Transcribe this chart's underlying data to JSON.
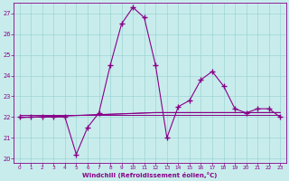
{
  "xlabel": "Windchill (Refroidissement éolien,°C)",
  "x": [
    0,
    1,
    2,
    3,
    4,
    5,
    6,
    7,
    8,
    9,
    10,
    11,
    12,
    13,
    14,
    15,
    16,
    17,
    18,
    19,
    20,
    21,
    22,
    23
  ],
  "y_main": [
    22,
    22,
    22,
    22,
    22,
    20.2,
    21.5,
    22.2,
    24.5,
    26.5,
    27.3,
    26.8,
    24.5,
    21.0,
    22.5,
    22.8,
    23.8,
    24.2,
    23.5,
    22.4,
    22.2,
    22.4,
    22.4,
    22
  ],
  "y_reg1": [
    21.98,
    22.0,
    22.02,
    22.04,
    22.06,
    22.08,
    22.1,
    22.12,
    22.14,
    22.16,
    22.18,
    22.2,
    22.22,
    22.22,
    22.22,
    22.22,
    22.22,
    22.22,
    22.22,
    22.22,
    22.22,
    22.22,
    22.22,
    22.22
  ],
  "y_reg2": [
    21.97,
    21.99,
    22.01,
    22.03,
    22.05,
    22.07,
    22.09,
    22.11,
    22.13,
    22.15,
    22.17,
    22.19,
    22.21,
    22.21,
    22.21,
    22.21,
    22.21,
    22.21,
    22.21,
    22.21,
    22.21,
    22.21,
    22.21,
    22.21
  ],
  "y_flat": [
    22.08,
    22.08,
    22.08,
    22.08,
    22.08,
    22.08,
    22.08,
    22.08,
    22.08,
    22.08,
    22.08,
    22.08,
    22.08,
    22.08,
    22.08,
    22.08,
    22.08,
    22.08,
    22.08,
    22.08,
    22.08,
    22.08,
    22.08,
    22.08
  ],
  "line_color": "#880088",
  "bg_color": "#c8ecec",
  "grid_color": "#9ed4d4",
  "ylim": [
    19.8,
    27.5
  ],
  "yticks": [
    20,
    21,
    22,
    23,
    24,
    25,
    26,
    27
  ],
  "xlim": [
    -0.5,
    23.5
  ],
  "xticks": [
    0,
    1,
    2,
    3,
    4,
    5,
    6,
    7,
    8,
    9,
    10,
    11,
    12,
    13,
    14,
    15,
    16,
    17,
    18,
    19,
    20,
    21,
    22,
    23
  ]
}
